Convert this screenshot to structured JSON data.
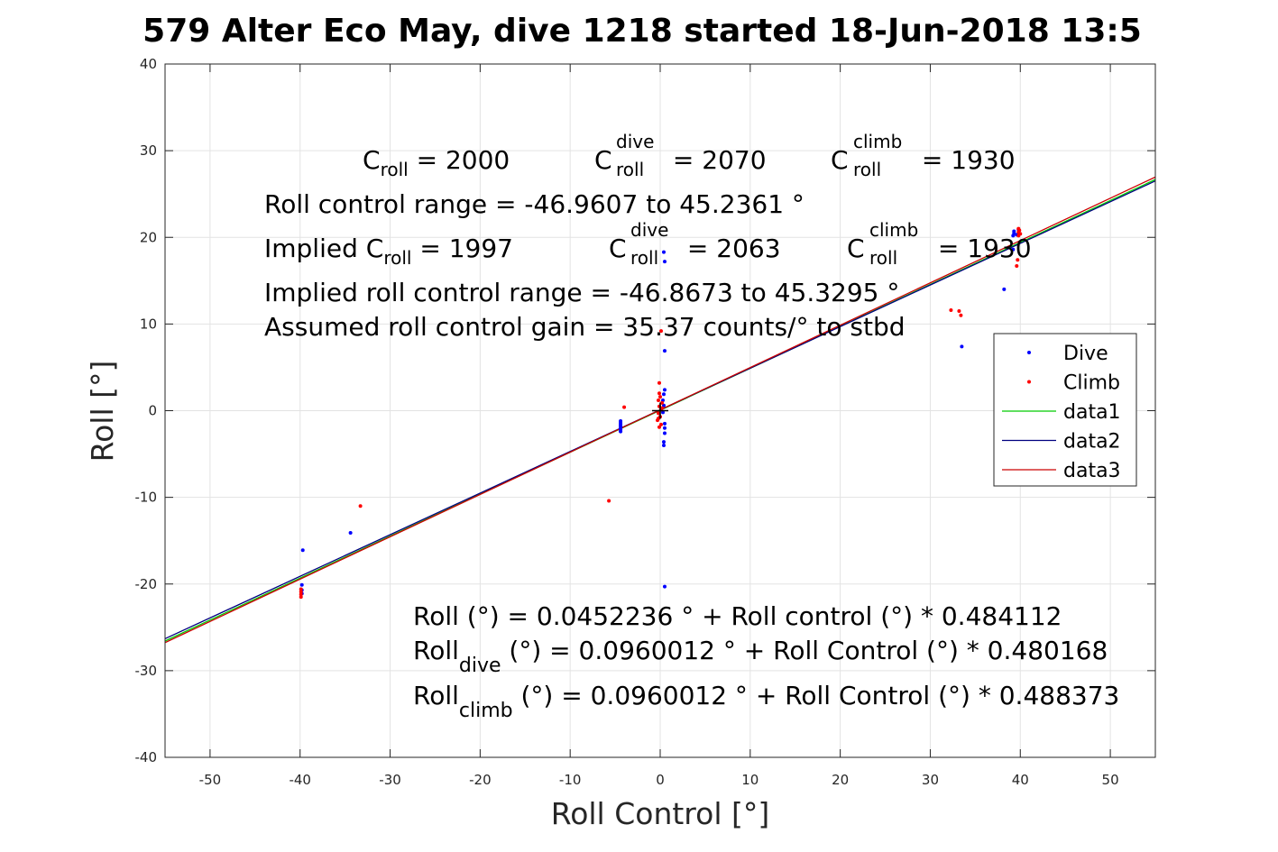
{
  "chart_data": {
    "type": "scatter",
    "title": "579 Alter Eco May, dive 1218 started 18-Jun-2018 13:5",
    "xlabel": "Roll Control [°]",
    "ylabel": "Roll [°]",
    "xlim": [
      -55,
      55
    ],
    "ylim": [
      -40,
      40
    ],
    "xticks": [
      -50,
      -40,
      -30,
      -20,
      -10,
      0,
      10,
      20,
      30,
      40,
      50
    ],
    "yticks": [
      -40,
      -30,
      -20,
      -10,
      0,
      10,
      20,
      30,
      40
    ],
    "grid": true,
    "legend_position": "right",
    "series": [
      {
        "name": "Dive",
        "kind": "points",
        "color": "#0000ff",
        "points": [
          [
            -39.7,
            -16.1
          ],
          [
            -39.8,
            -20.1
          ],
          [
            -39.8,
            -20.7
          ],
          [
            -39.8,
            -21.1
          ],
          [
            -34.4,
            -14.1
          ],
          [
            -4.4,
            -1.2
          ],
          [
            -4.4,
            -1.4
          ],
          [
            -4.4,
            -1.6
          ],
          [
            -4.4,
            -1.8
          ],
          [
            -4.4,
            -2.0
          ],
          [
            -4.4,
            -2.2
          ],
          [
            -4.4,
            -2.4
          ],
          [
            0.4,
            18.3
          ],
          [
            0.5,
            17.2
          ],
          [
            0.5,
            6.9
          ],
          [
            0.5,
            2.4
          ],
          [
            0.4,
            1.9
          ],
          [
            0.3,
            1.2
          ],
          [
            0.4,
            0.6
          ],
          [
            0.3,
            -0.2
          ],
          [
            0.5,
            -1.5
          ],
          [
            0.5,
            -2.0
          ],
          [
            0.5,
            -2.6
          ],
          [
            0.4,
            -3.6
          ],
          [
            0.4,
            -4.0
          ],
          [
            0.5,
            -20.3
          ],
          [
            33.5,
            7.4
          ],
          [
            38.2,
            14.0
          ],
          [
            39.2,
            20.2
          ],
          [
            39.3,
            20.5
          ],
          [
            39.3,
            20.7
          ],
          [
            39.6,
            20.3
          ],
          [
            39.8,
            20.9
          ],
          [
            39.2,
            18.6
          ]
        ]
      },
      {
        "name": "Climb",
        "kind": "points",
        "color": "#ff0000",
        "points": [
          [
            -39.9,
            -20.6
          ],
          [
            -39.9,
            -20.9
          ],
          [
            -39.9,
            -21.2
          ],
          [
            -39.9,
            -21.5
          ],
          [
            -33.3,
            -11.0
          ],
          [
            -5.7,
            -10.4
          ],
          [
            -4.0,
            0.4
          ],
          [
            0.1,
            9.2
          ],
          [
            -0.1,
            3.2
          ],
          [
            -0.1,
            2.0
          ],
          [
            0.0,
            1.6
          ],
          [
            -0.2,
            1.2
          ],
          [
            0.2,
            0.9
          ],
          [
            -0.1,
            0.5
          ],
          [
            0.1,
            0.1
          ],
          [
            -0.2,
            -0.3
          ],
          [
            0.0,
            -0.7
          ],
          [
            -0.3,
            -1.1
          ],
          [
            0.1,
            -1.6
          ],
          [
            -0.1,
            -1.9
          ],
          [
            0.2,
            0.3
          ],
          [
            -0.2,
            -0.9
          ],
          [
            32.3,
            11.6
          ],
          [
            33.2,
            11.5
          ],
          [
            33.4,
            11.0
          ],
          [
            39.6,
            16.7
          ],
          [
            39.7,
            17.4
          ],
          [
            39.8,
            20.2
          ],
          [
            39.8,
            20.6
          ],
          [
            39.8,
            21.0
          ],
          [
            39.9,
            20.8
          ],
          [
            40.0,
            20.4
          ]
        ]
      },
      {
        "name": "data1",
        "kind": "line",
        "color": "#00cc00",
        "intercept": 0.0452236,
        "slope": 0.484112,
        "x": [
          -55,
          55
        ]
      },
      {
        "name": "data2",
        "kind": "line",
        "color": "#000080",
        "intercept": 0.0960012,
        "slope": 0.480168,
        "x": [
          -55,
          55
        ]
      },
      {
        "name": "data3",
        "kind": "line",
        "color": "#cc0000",
        "intercept": 0.0960012,
        "slope": 0.488373,
        "x": [
          -55,
          55
        ]
      }
    ],
    "annotations": {
      "c_line": [
        {
          "base": "C",
          "sub": "roll",
          "sup": "",
          "rest": " = 2000"
        },
        {
          "base": "C",
          "sub": "roll",
          "sup": "dive",
          "rest": " = 2070"
        },
        {
          "base": "C",
          "sub": "roll",
          "sup": "climb",
          "rest": " = 1930"
        }
      ],
      "range_text": "Roll control range = -46.9607 to 45.2361 °",
      "implied_line": [
        {
          "base": "Implied C",
          "sub": "roll",
          "sup": "",
          "rest": " = 1997"
        },
        {
          "base": "C",
          "sub": "roll",
          "sup": "dive",
          "rest": " = 2063"
        },
        {
          "base": "C",
          "sub": "roll",
          "sup": "climb",
          "rest": " = 1930"
        }
      ],
      "implied_range_text": "Implied roll control range = -46.8673 to 45.3295 °",
      "gain_text": "Assumed roll control gain = 35.37 counts/° to stbd",
      "fit_line": "Roll (°) = 0.0452236 ° + Roll control (°) * 0.484112",
      "fit_dive": {
        "base": "Roll",
        "sub": "dive",
        "rest": " (°) = 0.0960012 ° + Roll Control (°) * 0.480168"
      },
      "fit_climb": {
        "base": "Roll",
        "sub": "climb",
        "rest": " (°) = 0.0960012 ° + Roll Control (°) * 0.488373"
      }
    },
    "origin_marker": "+"
  }
}
